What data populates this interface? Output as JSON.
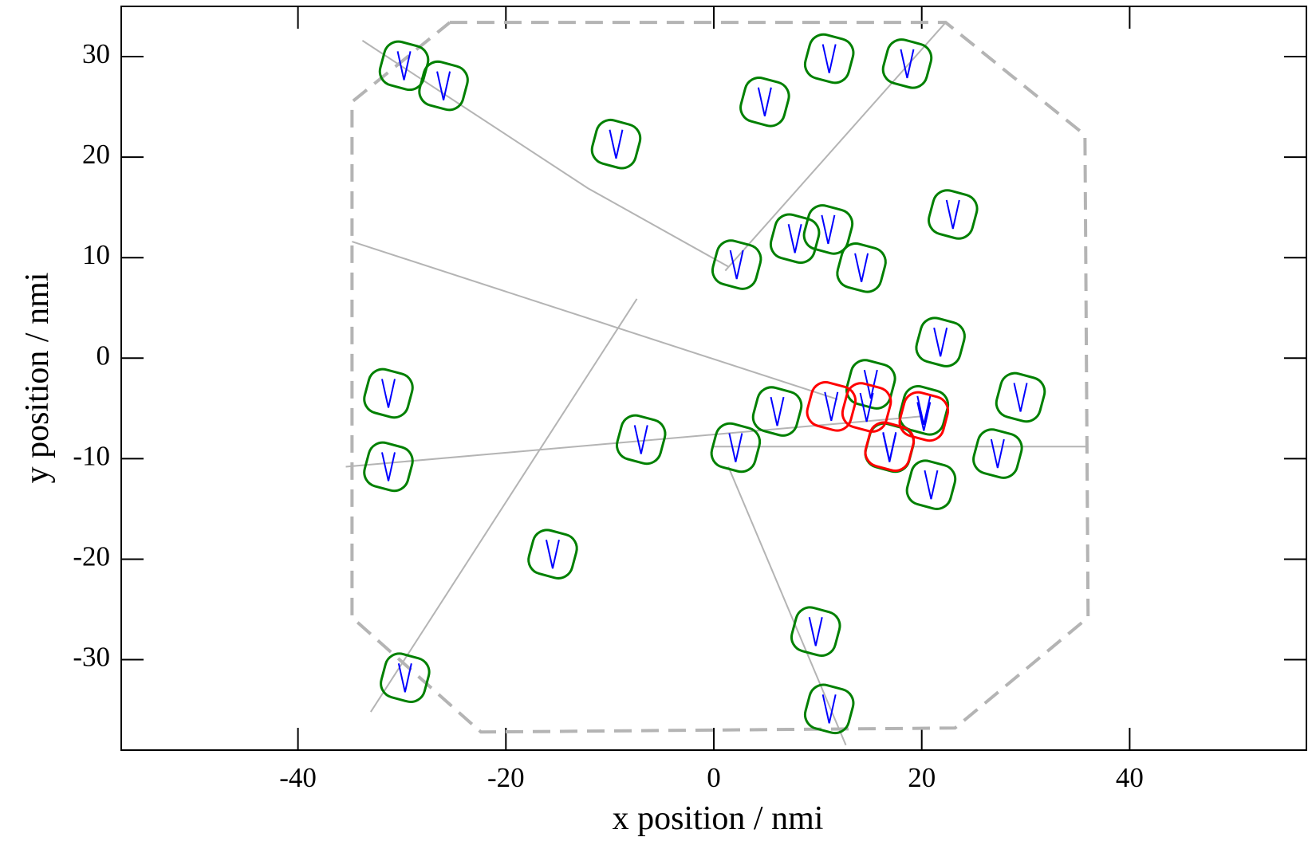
{
  "chart_data": {
    "type": "scatter",
    "xlabel": "x position / nmi",
    "ylabel": "y position / nmi",
    "xlim": [
      -57,
      57
    ],
    "ylim": [
      -39,
      35
    ],
    "xticks": [
      -40,
      -20,
      0,
      20,
      40
    ],
    "yticks": [
      -30,
      -20,
      -10,
      0,
      10,
      20,
      30
    ],
    "series": [
      {
        "type": "line",
        "dash": true,
        "color": "#b4b4b4",
        "x": [
          -25.4,
          22.3,
          35.7,
          36.0,
          23.2,
          -22.4,
          -34.8,
          -34.8,
          -25.4
        ],
        "values": [
          33.4,
          33.4,
          22.2,
          -25.8,
          -36.8,
          -37.2,
          -25.8,
          25.5,
          33.4
        ]
      },
      {
        "type": "line",
        "color": "#b4b4b4",
        "x": [
          -33.8,
          -12.1,
          1.4
        ],
        "values": [
          31.6,
          16.9,
          9.1
        ]
      },
      {
        "type": "line",
        "color": "#b4b4b4",
        "x": [
          22.3,
          1.1
        ],
        "values": [
          33.4,
          8.7
        ]
      },
      {
        "type": "line",
        "color": "#b4b4b4",
        "x": [
          -34.8,
          11.9
        ],
        "values": [
          11.6,
          -4.1
        ]
      },
      {
        "type": "line",
        "color": "#b4b4b4",
        "x": [
          -35.4,
          19.9
        ],
        "values": [
          -10.8,
          -5.8
        ]
      },
      {
        "type": "line",
        "color": "#b4b4b4",
        "x": [
          -33.0,
          -7.4
        ],
        "values": [
          -35.2,
          5.9
        ]
      },
      {
        "type": "line",
        "color": "#b4b4b4",
        "x": [
          35.9,
          -0.2
        ],
        "values": [
          -8.8,
          -8.8
        ]
      },
      {
        "type": "line",
        "color": "#b4b4b4",
        "x": [
          12.7,
          1.4
        ],
        "values": [
          -38.5,
          -10.8
        ]
      },
      {
        "type": "scatter",
        "color": "#008000",
        "x": [
          -29.8,
          -26.0,
          -9.4,
          4.9,
          11.1,
          18.6,
          23.0,
          7.8,
          11.0,
          14.2,
          2.2,
          21.8,
          15.1,
          29.5,
          6.1,
          20.2,
          -31.3,
          -31.3,
          -7.0,
          2.1,
          27.3,
          16.9,
          20.9,
          -15.5,
          9.8,
          -29.7,
          11.1
        ],
        "values": [
          29.1,
          27.1,
          21.3,
          25.5,
          29.8,
          29.3,
          14.3,
          11.9,
          12.8,
          9.0,
          9.3,
          1.6,
          -2.6,
          -3.9,
          -5.3,
          -5.2,
          -3.5,
          -10.8,
          -8.1,
          -8.9,
          -9.5,
          -8.9,
          -12.6,
          -19.5,
          -27.2,
          -31.8,
          -34.9
        ]
      },
      {
        "type": "scatter",
        "color": "#ff0000",
        "x": [
          11.3,
          14.7,
          20.2,
          16.9
        ],
        "values": [
          -4.8,
          -4.9,
          -5.8,
          -8.8
        ]
      }
    ]
  }
}
